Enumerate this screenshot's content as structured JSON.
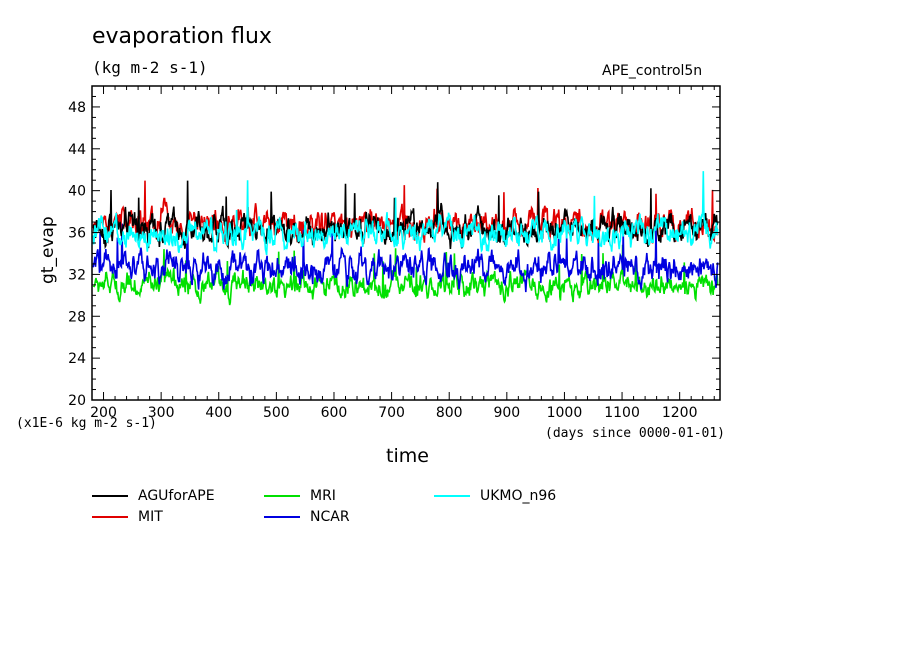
{
  "chart_data": {
    "type": "line",
    "title": "evaporation flux",
    "units": "(kg m-2 s-1)",
    "run_id": "APE_control5n",
    "xlabel": "time",
    "ylabel": "gt_evap",
    "scale_note": "(x1E-6 kg m-2 s-1)",
    "x_units": "(days since 0000-01-01)",
    "xlim": [
      180,
      1270
    ],
    "ylim": [
      20,
      50
    ],
    "x_ticks": [
      "200",
      "300",
      "400",
      "500",
      "600",
      "700",
      "800",
      "900",
      "1000",
      "1100",
      "1200"
    ],
    "y_ticks": [
      "20",
      "24",
      "28",
      "32",
      "36",
      "40",
      "44",
      "48"
    ],
    "series": [
      {
        "name": "AGUforAPE",
        "color": "#000000",
        "mean": 36.5,
        "amplitude": 1.5
      },
      {
        "name": "MIT",
        "color": "#e00000",
        "mean": 36.8,
        "amplitude": 1.5
      },
      {
        "name": "MRI",
        "color": "#00e000",
        "mean": 31.0,
        "amplitude": 1.2
      },
      {
        "name": "NCAR",
        "color": "#0000e0",
        "mean": 32.5,
        "amplitude": 1.5
      },
      {
        "name": "UKMO_n96",
        "color": "#00ffff",
        "mean": 36.0,
        "amplitude": 1.4
      }
    ]
  }
}
